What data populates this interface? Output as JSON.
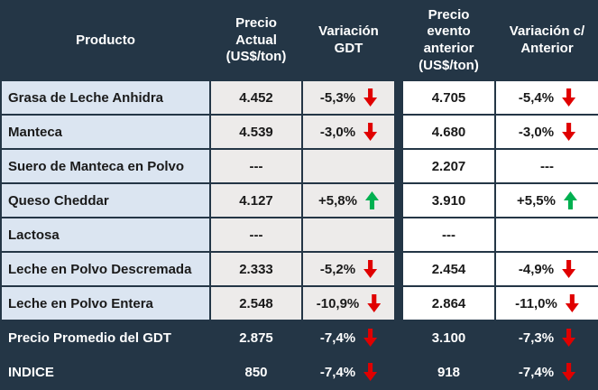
{
  "header": {
    "producto": "Producto",
    "precio_actual": "Precio Actual (US$/ton)",
    "variacion_gdt": "Variación GDT",
    "precio_anterior": "Precio evento anterior (US$/ton)",
    "variacion_anterior": "Variación c/ Anterior"
  },
  "rows": [
    {
      "producto": "Grasa de Leche Anhidra",
      "precio_actual": "4.452",
      "variacion_gdt": "-5,3%",
      "gdt_trend": "down",
      "precio_anterior": "4.705",
      "variacion_anterior": "-5,4%",
      "anterior_trend": "down",
      "style": "normal"
    },
    {
      "producto": "Manteca",
      "precio_actual": "4.539",
      "variacion_gdt": "-3,0%",
      "gdt_trend": "down",
      "precio_anterior": "4.680",
      "variacion_anterior": "-3,0%",
      "anterior_trend": "down",
      "style": "normal"
    },
    {
      "producto": "Suero de Manteca en Polvo",
      "precio_actual": "---",
      "variacion_gdt": "",
      "gdt_trend": "none",
      "precio_anterior": "2.207",
      "variacion_anterior": "---",
      "anterior_trend": "none",
      "style": "normal"
    },
    {
      "producto": "Queso Cheddar",
      "precio_actual": "4.127",
      "variacion_gdt": "+5,8%",
      "gdt_trend": "up",
      "precio_anterior": "3.910",
      "variacion_anterior": "+5,5%",
      "anterior_trend": "up",
      "style": "normal"
    },
    {
      "producto": "Lactosa",
      "precio_actual": "---",
      "variacion_gdt": "",
      "gdt_trend": "none",
      "precio_anterior": "---",
      "variacion_anterior": "",
      "anterior_trend": "none",
      "style": "normal"
    },
    {
      "producto": "Leche en Polvo Descremada",
      "precio_actual": "2.333",
      "variacion_gdt": "-5,2%",
      "gdt_trend": "down",
      "precio_anterior": "2.454",
      "variacion_anterior": "-4,9%",
      "anterior_trend": "down",
      "style": "normal"
    },
    {
      "producto": "Leche en Polvo Entera",
      "precio_actual": "2.548",
      "variacion_gdt": "-10,9%",
      "gdt_trend": "down",
      "precio_anterior": "2.864",
      "variacion_anterior": "-11,0%",
      "anterior_trend": "down",
      "style": "normal"
    },
    {
      "producto": "Precio Promedio del GDT",
      "precio_actual": "2.875",
      "variacion_gdt": "-7,4%",
      "gdt_trend": "down",
      "precio_anterior": "3.100",
      "variacion_anterior": "-7,3%",
      "anterior_trend": "down",
      "style": "dark"
    },
    {
      "producto": "INDICE",
      "precio_actual": "850",
      "variacion_gdt": "-7,4%",
      "gdt_trend": "down",
      "precio_anterior": "918",
      "variacion_anterior": "-7,4%",
      "anterior_trend": "down",
      "style": "dark"
    }
  ],
  "colors": {
    "header_bg": "#243646",
    "product_bg": "#DBE5F1",
    "left_panel_bg": "#EDEBEA",
    "right_panel_bg": "#FFFFFF",
    "up_arrow": "#00B050",
    "down_arrow": "#E00000"
  },
  "chart_data": {
    "type": "table",
    "title": "Resultados GDT por producto",
    "columns": [
      "Producto",
      "Precio Actual (US$/ton)",
      "Variación GDT",
      "Precio evento anterior (US$/ton)",
      "Variación c/ Anterior"
    ],
    "rows": [
      [
        "Grasa de Leche Anhidra",
        "4.452",
        "-5,3% ▼",
        "4.705",
        "-5,4% ▼"
      ],
      [
        "Manteca",
        "4.539",
        "-3,0% ▼",
        "4.680",
        "-3,0% ▼"
      ],
      [
        "Suero de Manteca en Polvo",
        "---",
        "",
        "2.207",
        "---"
      ],
      [
        "Queso Cheddar",
        "4.127",
        "+5,8% ▲",
        "3.910",
        "+5,5% ▲"
      ],
      [
        "Lactosa",
        "---",
        "",
        "---",
        ""
      ],
      [
        "Leche en Polvo Descremada",
        "2.333",
        "-5,2% ▼",
        "2.454",
        "-4,9% ▼"
      ],
      [
        "Leche en Polvo Entera",
        "2.548",
        "-10,9% ▼",
        "2.864",
        "-11,0% ▼"
      ],
      [
        "Precio Promedio del GDT",
        "2.875",
        "-7,4% ▼",
        "3.100",
        "-7,3% ▼"
      ],
      [
        "INDICE",
        "850",
        "-7,4% ▼",
        "918",
        "-7,4% ▼"
      ]
    ]
  }
}
